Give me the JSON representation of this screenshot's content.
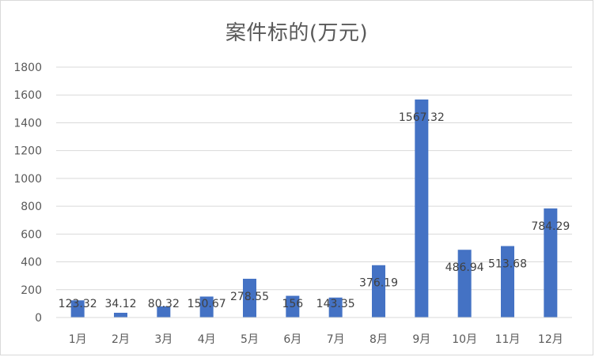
{
  "chart_data": {
    "type": "bar",
    "title": "案件标的(万元)",
    "categories": [
      "1月",
      "2月",
      "3月",
      "4月",
      "5月",
      "6月",
      "7月",
      "8月",
      "9月",
      "10月",
      "11月",
      "12月"
    ],
    "values": [
      123.32,
      34.12,
      80.32,
      150.67,
      278.55,
      156,
      143.35,
      376.19,
      1567.32,
      486.94,
      513.68,
      784.29
    ],
    "data_labels": [
      "123.32",
      "34.12",
      "80.32",
      "150.67",
      "278.55",
      "156",
      "143.35",
      "376.19",
      "1567.32",
      "486.94",
      "513.68",
      "784.29"
    ],
    "ylim": [
      0,
      1800
    ],
    "y_ticks": [
      0,
      200,
      400,
      600,
      800,
      1000,
      1200,
      1400,
      1600,
      1800
    ],
    "grid": true,
    "legend": "none",
    "bar_color": "#4472C4",
    "xlabel": "",
    "ylabel": ""
  }
}
